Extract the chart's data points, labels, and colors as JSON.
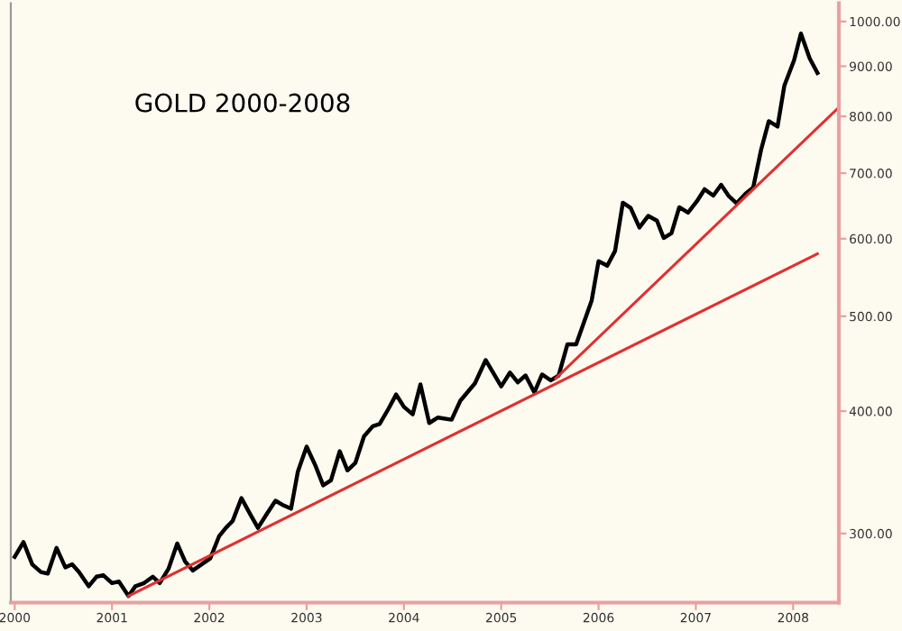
{
  "chart_data": {
    "type": "line",
    "title": "GOLD 2000-2008",
    "log": true,
    "grid": false,
    "marker": "none",
    "line_style": "solid",
    "xlim": [
      1999.96,
      2008.47
    ],
    "xticks": [
      2000,
      2001,
      2002,
      2003,
      2004,
      2005,
      2006,
      2007,
      2008
    ],
    "ylim": [
      255,
      1044
    ],
    "yticks": [
      {
        "value": 300,
        "label": "300.00"
      },
      {
        "value": 400,
        "label": "400.00"
      },
      {
        "value": 500,
        "label": "500.00"
      },
      {
        "value": 600,
        "label": "600.00"
      },
      {
        "value": 700,
        "label": "700.00"
      },
      {
        "value": 800,
        "label": "800.00"
      },
      {
        "value": 900,
        "label": "900.00"
      },
      {
        "value": 1000,
        "label": "1000.00"
      }
    ],
    "series": [
      {
        "color": "#000000",
        "x": [
          2000.0,
          2000.09,
          2000.18,
          2000.27,
          2000.34,
          2000.43,
          2000.52,
          2000.59,
          2000.66,
          2000.76,
          2000.84,
          2000.91,
          2001.0,
          2001.07,
          2001.17,
          2001.24,
          2001.33,
          2001.42,
          2001.49,
          2001.58,
          2001.67,
          2001.75,
          2001.83,
          2001.92,
          2002.01,
          2002.1,
          2002.17,
          2002.24,
          2002.33,
          2002.42,
          2002.5,
          2002.59,
          2002.68,
          2002.75,
          2002.84,
          2002.91,
          2003.0,
          2003.09,
          2003.17,
          2003.25,
          2003.34,
          2003.42,
          2003.5,
          2003.59,
          2003.68,
          2003.75,
          2003.84,
          2003.92,
          2004.0,
          2004.09,
          2004.17,
          2004.26,
          2004.35,
          2004.49,
          2004.58,
          2004.73,
          2004.84,
          2005.0,
          2005.09,
          2005.17,
          2005.25,
          2005.34,
          2005.42,
          2005.51,
          2005.59,
          2005.68,
          2005.77,
          2005.93,
          2006.0,
          2006.09,
          2006.17,
          2006.25,
          2006.33,
          2006.42,
          2006.51,
          2006.6,
          2006.67,
          2006.75,
          2006.83,
          2006.92,
          2007.01,
          2007.09,
          2007.18,
          2007.26,
          2007.34,
          2007.42,
          2007.51,
          2007.59,
          2007.67,
          2007.75,
          2007.84,
          2007.91,
          2008.01,
          2008.08,
          2008.17,
          2008.25
        ],
        "values": [
          284,
          294,
          279,
          274,
          273,
          290,
          277,
          279,
          274,
          265,
          271,
          272,
          267,
          268,
          259,
          265,
          267,
          271,
          267,
          276,
          293,
          281,
          275,
          279,
          283,
          298,
          304,
          309,
          326,
          314,
          304,
          314,
          324,
          321,
          318,
          347,
          368,
          352,
          336,
          340,
          364,
          348,
          354,
          377,
          386,
          388,
          402,
          416,
          404,
          397,
          426,
          389,
          394,
          392,
          410,
          427,
          451,
          424,
          438,
          428,
          435,
          418,
          436,
          430,
          435,
          468,
          468,
          519,
          569,
          563,
          583,
          653,
          645,
          616,
          633,
          626,
          601,
          608,
          646,
          638,
          655,
          674,
          664,
          681,
          663,
          652,
          667,
          677,
          739,
          791,
          781,
          860,
          913,
          972,
          917,
          886
        ]
      },
      {
        "color": "#e03030",
        "x": [
          2001.17,
          2008.25
        ],
        "values": [
          259,
          579
        ]
      },
      {
        "color": "#e03030",
        "x": [
          2005.56,
          2008.47
        ],
        "values": [
          432,
          817
        ]
      }
    ]
  }
}
